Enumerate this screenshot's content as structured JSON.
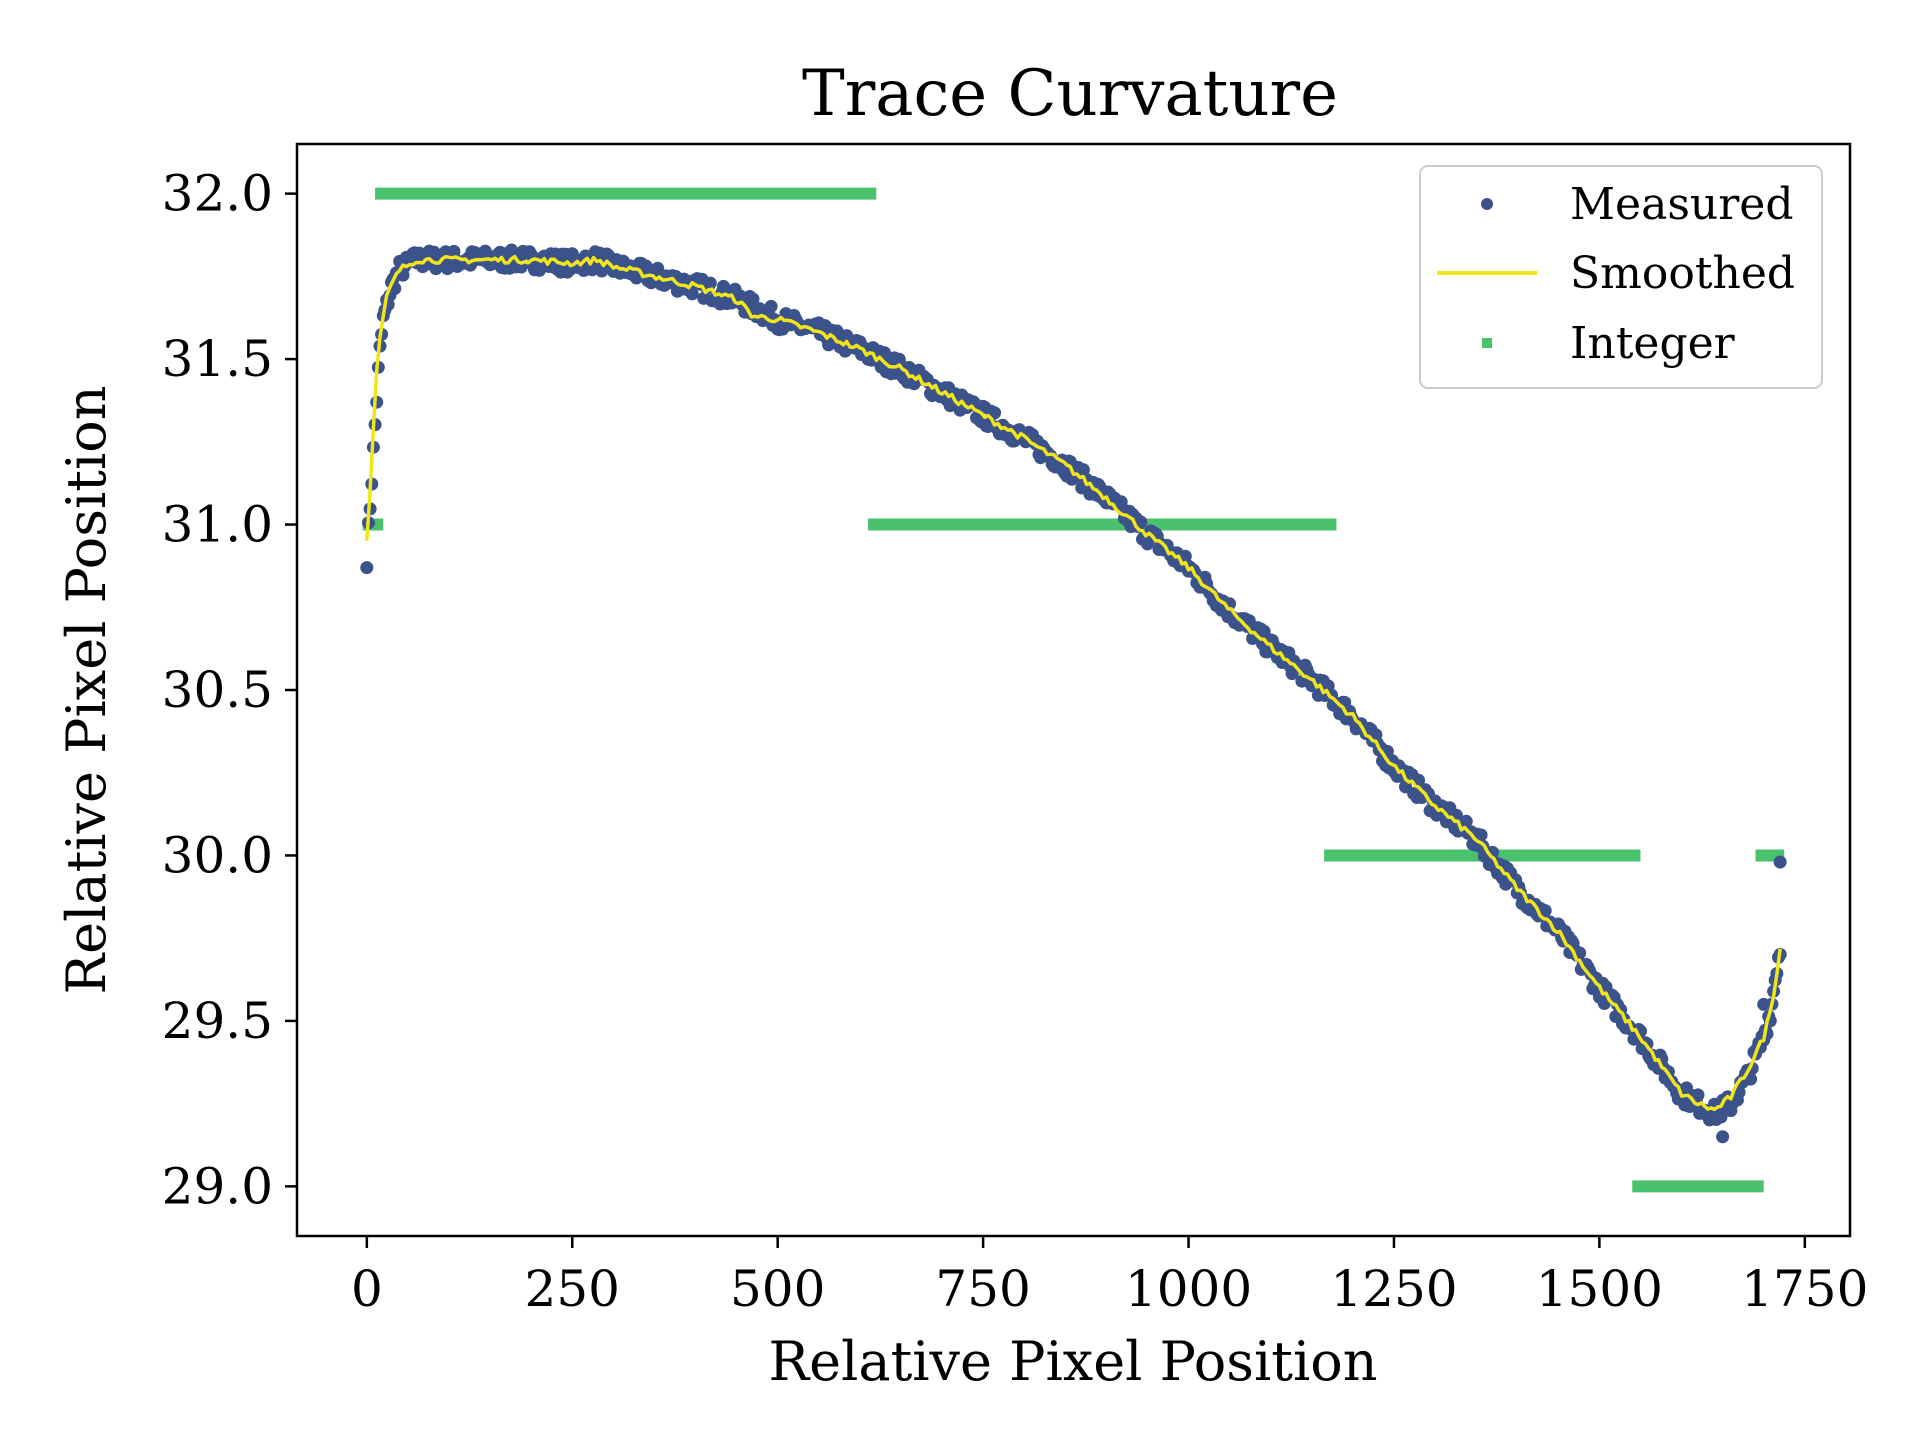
{
  "colors": {
    "measured": "#3b528b",
    "smoothed": "#f0e51b",
    "integer": "#4ac16d",
    "axes": "#000000",
    "legend_border": "#cccccc"
  },
  "chart_data": {
    "type": "scatter",
    "title": "Trace Curvature",
    "xlabel": "Relative Pixel Position",
    "ylabel": "Relative Pixel Position",
    "xlim": [
      -85,
      1805
    ],
    "ylim": [
      28.85,
      32.15
    ],
    "xticks": [
      0,
      250,
      500,
      750,
      1000,
      1250,
      1500,
      1750
    ],
    "xtick_labels": [
      "0",
      "250",
      "500",
      "750",
      "1000",
      "1250",
      "1500",
      "1750"
    ],
    "yticks": [
      29.0,
      29.5,
      30.0,
      30.5,
      31.0,
      31.5,
      32.0
    ],
    "ytick_labels": [
      "29.0",
      "29.5",
      "30.0",
      "30.5",
      "31.0",
      "31.5",
      "32.0"
    ],
    "grid": false,
    "legend_position": "top-right",
    "series": [
      {
        "name": "Measured",
        "kind": "points",
        "x_range": [
          0,
          1720
        ],
        "profile": [
          [
            0,
            30.9
          ],
          [
            5,
            31.1
          ],
          [
            10,
            31.3
          ],
          [
            15,
            31.5
          ],
          [
            20,
            31.62
          ],
          [
            30,
            31.72
          ],
          [
            40,
            31.77
          ],
          [
            60,
            31.8
          ],
          [
            100,
            31.8
          ],
          [
            150,
            31.8
          ],
          [
            200,
            31.8
          ],
          [
            250,
            31.79
          ],
          [
            280,
            31.8
          ],
          [
            300,
            31.78
          ],
          [
            350,
            31.75
          ],
          [
            400,
            31.72
          ],
          [
            450,
            31.68
          ],
          [
            500,
            31.62
          ],
          [
            550,
            31.58
          ],
          [
            600,
            31.53
          ],
          [
            650,
            31.47
          ],
          [
            700,
            31.4
          ],
          [
            750,
            31.33
          ],
          [
            800,
            31.26
          ],
          [
            850,
            31.18
          ],
          [
            900,
            31.08
          ],
          [
            950,
            30.97
          ],
          [
            1000,
            30.87
          ],
          [
            1050,
            30.74
          ],
          [
            1100,
            30.63
          ],
          [
            1150,
            30.53
          ],
          [
            1200,
            30.42
          ],
          [
            1250,
            30.27
          ],
          [
            1300,
            30.15
          ],
          [
            1350,
            30.05
          ],
          [
            1400,
            29.9
          ],
          [
            1450,
            29.77
          ],
          [
            1500,
            29.6
          ],
          [
            1550,
            29.45
          ],
          [
            1600,
            29.28
          ],
          [
            1620,
            29.25
          ],
          [
            1640,
            29.22
          ],
          [
            1660,
            29.25
          ],
          [
            1680,
            29.33
          ],
          [
            1700,
            29.45
          ],
          [
            1710,
            29.55
          ],
          [
            1715,
            29.65
          ],
          [
            1720,
            29.72
          ]
        ],
        "extra_points": [
          [
            1720,
            29.98
          ],
          [
            1650,
            29.15
          ],
          [
            1700,
            29.55
          ]
        ]
      },
      {
        "name": "Smoothed",
        "kind": "line",
        "profile": [
          [
            0,
            30.95
          ],
          [
            5,
            31.15
          ],
          [
            10,
            31.4
          ],
          [
            15,
            31.55
          ],
          [
            25,
            31.7
          ],
          [
            40,
            31.77
          ],
          [
            60,
            31.8
          ],
          [
            100,
            31.8
          ],
          [
            150,
            31.8
          ],
          [
            200,
            31.8
          ],
          [
            250,
            31.79
          ],
          [
            280,
            31.8
          ],
          [
            300,
            31.78
          ],
          [
            350,
            31.75
          ],
          [
            400,
            31.72
          ],
          [
            450,
            31.68
          ],
          [
            470,
            31.63
          ],
          [
            500,
            31.62
          ],
          [
            550,
            31.58
          ],
          [
            600,
            31.53
          ],
          [
            650,
            31.47
          ],
          [
            700,
            31.4
          ],
          [
            750,
            31.33
          ],
          [
            800,
            31.26
          ],
          [
            850,
            31.18
          ],
          [
            900,
            31.08
          ],
          [
            950,
            30.97
          ],
          [
            1000,
            30.87
          ],
          [
            1050,
            30.74
          ],
          [
            1100,
            30.63
          ],
          [
            1150,
            30.53
          ],
          [
            1200,
            30.42
          ],
          [
            1250,
            30.27
          ],
          [
            1300,
            30.15
          ],
          [
            1350,
            30.05
          ],
          [
            1400,
            29.9
          ],
          [
            1450,
            29.77
          ],
          [
            1500,
            29.6
          ],
          [
            1550,
            29.45
          ],
          [
            1600,
            29.28
          ],
          [
            1620,
            29.25
          ],
          [
            1640,
            29.23
          ],
          [
            1660,
            29.27
          ],
          [
            1680,
            29.35
          ],
          [
            1700,
            29.45
          ],
          [
            1710,
            29.55
          ],
          [
            1720,
            29.72
          ]
        ]
      },
      {
        "name": "Integer",
        "kind": "segments",
        "segments": [
          {
            "x0": -5,
            "x1": 20,
            "y": 31.0
          },
          {
            "x0": 10,
            "x1": 620,
            "y": 32.0
          },
          {
            "x0": 610,
            "x1": 1180,
            "y": 31.0
          },
          {
            "x0": 1165,
            "x1": 1550,
            "y": 30.0
          },
          {
            "x0": 1540,
            "x1": 1700,
            "y": 29.0
          },
          {
            "x0": 1690,
            "x1": 1725,
            "y": 30.0
          }
        ]
      }
    ]
  }
}
